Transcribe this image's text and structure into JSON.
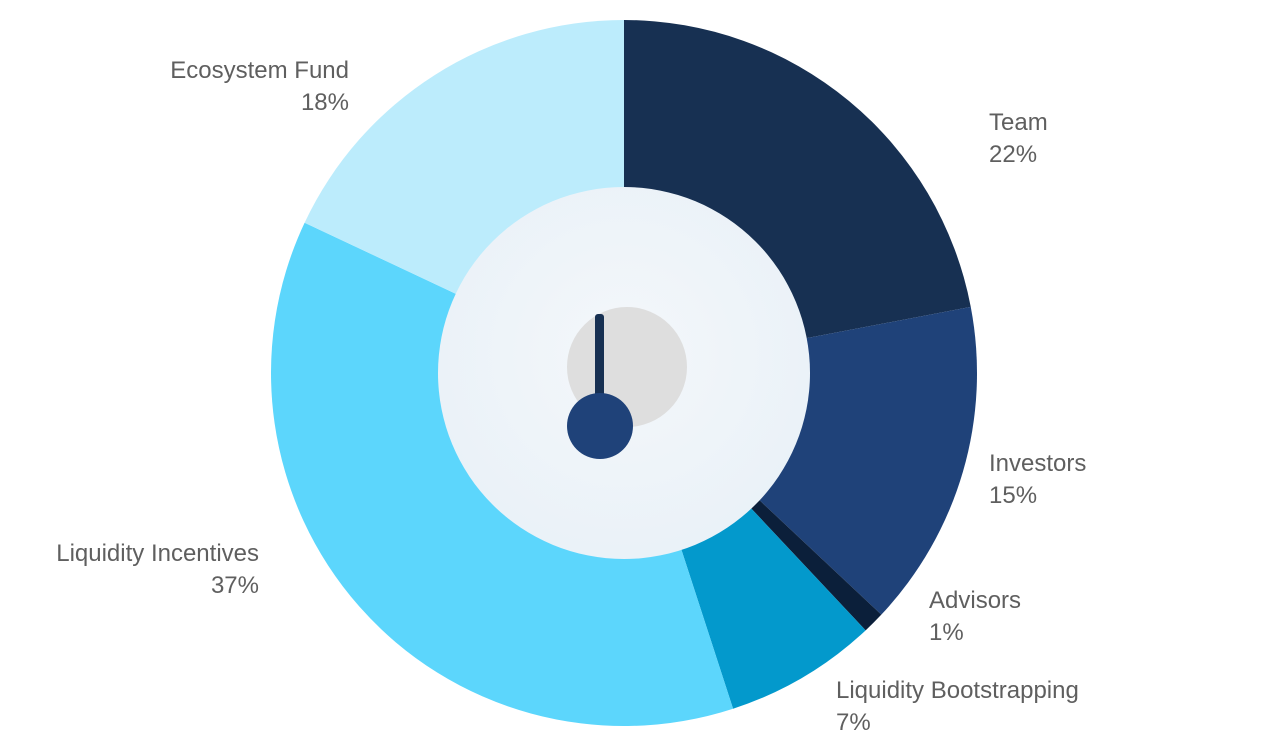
{
  "chart_data": {
    "type": "pie",
    "title": "",
    "slices": [
      {
        "label": "Team",
        "value": 22,
        "value_label": "22%",
        "color": "#173052"
      },
      {
        "label": "Investors",
        "value": 15,
        "value_label": "15%",
        "color": "#1f4279"
      },
      {
        "label": "Advisors",
        "value": 1,
        "value_label": "1%",
        "color": "#0b1f3a"
      },
      {
        "label": "Liquidity Bootstrapping",
        "value": 7,
        "value_label": "7%",
        "color": "#0399cc"
      },
      {
        "label": "Liquidity Incentives",
        "value": 37,
        "value_label": "37%",
        "color": "#5cd6fc"
      },
      {
        "label": "Ecosystem Fund",
        "value": 18,
        "value_label": "18%",
        "color": "#bcecfc"
      }
    ],
    "center_fill": "#eef4f9",
    "hub_color": "#1f4279",
    "hub_backdrop": "#dedede"
  }
}
